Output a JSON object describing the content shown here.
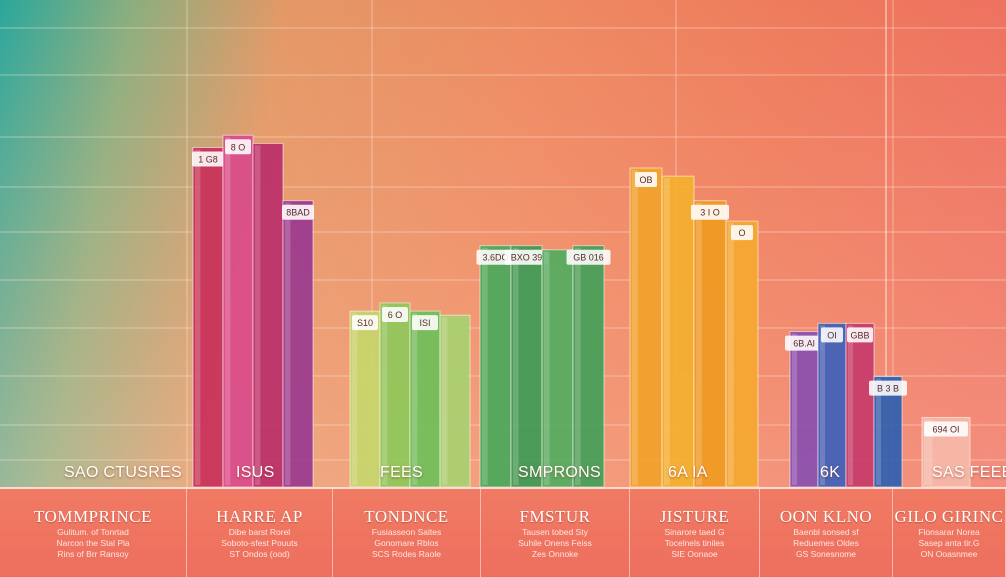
{
  "chart_data": {
    "type": "bar",
    "ylim": [
      0,
      100
    ],
    "grid": true,
    "groups": [
      {
        "label": "SAO CTUSRES",
        "values": [],
        "colors": []
      },
      {
        "label": "ISUS",
        "values": [
          83,
          86,
          84,
          70
        ],
        "colors": [
          "#c8305a",
          "#d94a8a",
          "#bb2f6a",
          "#9a3a8f"
        ],
        "tags": [
          "1 G8",
          "8 O",
          "",
          "8BAD"
        ]
      },
      {
        "label": "FEES",
        "values": [
          43,
          45,
          43,
          42
        ],
        "colors": [
          "#c6d66a",
          "#8fc85a",
          "#6fbf5a",
          "#a8d070"
        ],
        "tags": [
          "S10",
          "6 O",
          "ISI",
          ""
        ]
      },
      {
        "label": "SMPRONS",
        "values": [
          59,
          59,
          58,
          59
        ],
        "colors": [
          "#4aa85a",
          "#3e9a55",
          "#52ad5f",
          "#44a059"
        ],
        "tags": [
          "3.6DO",
          "BXO 39",
          "",
          "GB 016"
        ]
      },
      {
        "label": "6A IA",
        "values": [
          78,
          76,
          70,
          65
        ],
        "colors": [
          "#f2a22a",
          "#f4b02e",
          "#f09a22",
          "#f5a830"
        ],
        "tags": [
          "OB",
          "",
          "3 I O",
          "O"
        ]
      },
      {
        "label": "6K",
        "values": [
          38,
          40,
          40,
          27
        ],
        "colors": [
          "#8a4fb0",
          "#3f5fb8",
          "#c73b6a",
          "#2f5fb0"
        ],
        "tags": [
          "6B.Al",
          "OI",
          "GBB",
          "B 3 B"
        ]
      },
      {
        "label": "SAS FEEE",
        "values": [
          17
        ],
        "colors": [
          "#f6b8a8"
        ],
        "tags": [
          "694 OI"
        ]
      }
    ]
  },
  "panels": [
    {
      "title": "TOMMPRINCE",
      "lines": [
        "Gulitum. of Tonrtad",
        "Narcon the Stal Pla",
        "Rins of Brr Ransoy"
      ]
    },
    {
      "title": "HARRE AP",
      "lines": [
        "Dibe barst Rorel",
        "Soboto-sfest Pouuts",
        "ST Ondos (ood)"
      ]
    },
    {
      "title": "TONDNCE",
      "lines": [
        "Fusiasseon Saltes",
        "Gonomare Rblos",
        "SCS Rodes Raole"
      ]
    },
    {
      "title": "FMSTUR",
      "lines": [
        "Tausen tobed Sty",
        "Suhile Onens Feiss",
        "Zes Onnoke"
      ]
    },
    {
      "title": "JISTURE",
      "lines": [
        "Sinarore taed G",
        "Tocelnels tiniles",
        "SIE Oonaoe"
      ]
    },
    {
      "title": "OON KLNO",
      "lines": [
        "Baenbl sonsed sf",
        "Reduemes Oldes",
        "GS Sonesnome"
      ]
    },
    {
      "title": "GILO GIRINC",
      "lines": [
        "Flonsarar Norea",
        "Sasep anta tir.G",
        "ON Ooasnmee"
      ]
    }
  ]
}
